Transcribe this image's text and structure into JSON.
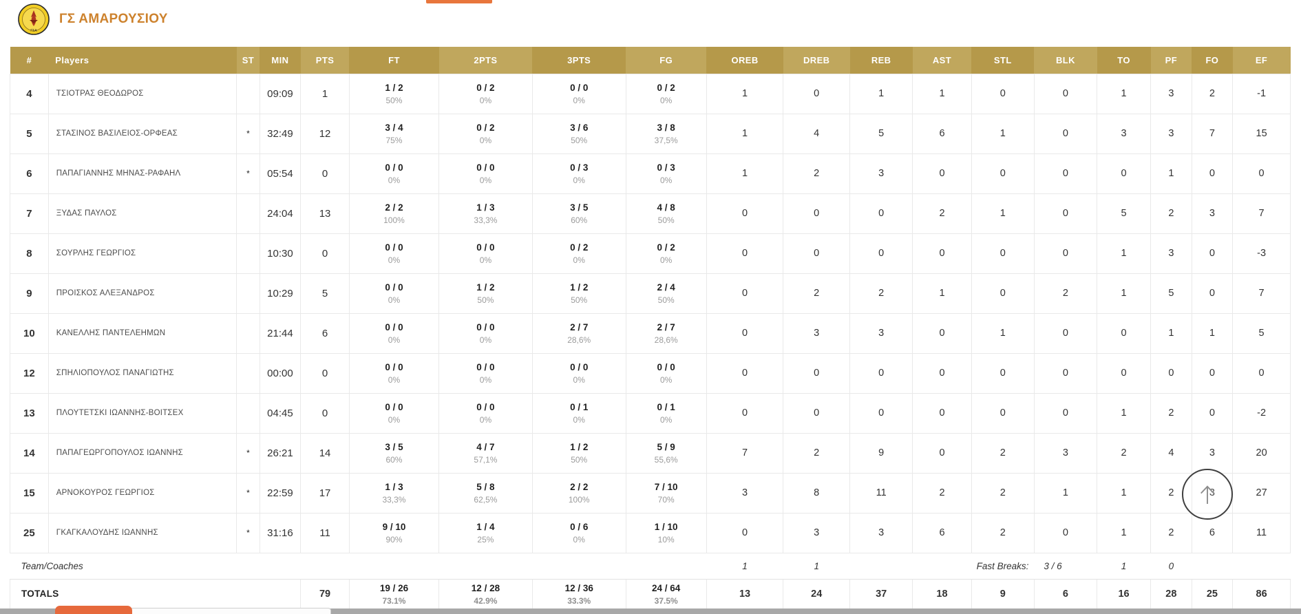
{
  "team": {
    "name": "ΓΣ ΑΜΑΡΟΥΣΙΟΥ"
  },
  "colors": {
    "header_gold_dark": "#b5994a",
    "header_gold_light": "#c0a75d",
    "team_name_orange": "#cd822d",
    "accent_orange_button": "#e6693c",
    "pct_gray": "#9b9b9b"
  },
  "icons": {
    "scroll_top_arrow": "up-arrow",
    "team_logo": "club-crest"
  },
  "table": {
    "columns": [
      "#",
      "Players",
      "ST",
      "MIN",
      "PTS",
      "FT",
      "2PTS",
      "3PTS",
      "FG",
      "OREB",
      "DREB",
      "REB",
      "AST",
      "STL",
      "BLK",
      "TO",
      "PF",
      "FO",
      "EF"
    ],
    "players": [
      {
        "num": "4",
        "name": "ΤΣΙΟΤΡΑΣ ΘΕΟΔΩΡΟΣ",
        "starter": "",
        "min": "09:09",
        "pts": "1",
        "ft": "1 / 2",
        "ft_pct": "50%",
        "p2": "0 / 2",
        "p2_pct": "0%",
        "p3": "0 / 0",
        "p3_pct": "0%",
        "fg": "0 / 2",
        "fg_pct": "0%",
        "oreb": "1",
        "dreb": "0",
        "reb": "1",
        "ast": "1",
        "stl": "0",
        "blk": "0",
        "to": "1",
        "pf": "3",
        "fo": "2",
        "ef": "-1"
      },
      {
        "num": "5",
        "name": "ΣΤΑΣΙΝΟΣ ΒΑΣΙΛΕΙΟΣ-ΟΡΦΕΑΣ",
        "starter": "*",
        "min": "32:49",
        "pts": "12",
        "ft": "3 / 4",
        "ft_pct": "75%",
        "p2": "0 / 2",
        "p2_pct": "0%",
        "p3": "3 / 6",
        "p3_pct": "50%",
        "fg": "3 / 8",
        "fg_pct": "37,5%",
        "oreb": "1",
        "dreb": "4",
        "reb": "5",
        "ast": "6",
        "stl": "1",
        "blk": "0",
        "to": "3",
        "pf": "3",
        "fo": "7",
        "ef": "15"
      },
      {
        "num": "6",
        "name": "ΠΑΠΑΓΙΑΝΝΗΣ ΜΗΝΑΣ-ΡΑΦΑΗΛ",
        "starter": "*",
        "min": "05:54",
        "pts": "0",
        "ft": "0 / 0",
        "ft_pct": "0%",
        "p2": "0 / 0",
        "p2_pct": "0%",
        "p3": "0 / 3",
        "p3_pct": "0%",
        "fg": "0 / 3",
        "fg_pct": "0%",
        "oreb": "1",
        "dreb": "2",
        "reb": "3",
        "ast": "0",
        "stl": "0",
        "blk": "0",
        "to": "0",
        "pf": "1",
        "fo": "0",
        "ef": "0"
      },
      {
        "num": "7",
        "name": "ΞΥΔΑΣ ΠΑΥΛΟΣ",
        "starter": "",
        "min": "24:04",
        "pts": "13",
        "ft": "2 / 2",
        "ft_pct": "100%",
        "p2": "1 / 3",
        "p2_pct": "33,3%",
        "p3": "3 / 5",
        "p3_pct": "60%",
        "fg": "4 / 8",
        "fg_pct": "50%",
        "oreb": "0",
        "dreb": "0",
        "reb": "0",
        "ast": "2",
        "stl": "1",
        "blk": "0",
        "to": "5",
        "pf": "2",
        "fo": "3",
        "ef": "7"
      },
      {
        "num": "8",
        "name": "ΣΟΥΡΛΗΣ ΓΕΩΡΓΙΟΣ",
        "starter": "",
        "min": "10:30",
        "pts": "0",
        "ft": "0 / 0",
        "ft_pct": "0%",
        "p2": "0 / 0",
        "p2_pct": "0%",
        "p3": "0 / 2",
        "p3_pct": "0%",
        "fg": "0 / 2",
        "fg_pct": "0%",
        "oreb": "0",
        "dreb": "0",
        "reb": "0",
        "ast": "0",
        "stl": "0",
        "blk": "0",
        "to": "1",
        "pf": "3",
        "fo": "0",
        "ef": "-3"
      },
      {
        "num": "9",
        "name": "ΠΡΟΙΣΚΟΣ ΑΛΕΞΑΝΔΡΟΣ",
        "starter": "",
        "min": "10:29",
        "pts": "5",
        "ft": "0 / 0",
        "ft_pct": "0%",
        "p2": "1 / 2",
        "p2_pct": "50%",
        "p3": "1 / 2",
        "p3_pct": "50%",
        "fg": "2 / 4",
        "fg_pct": "50%",
        "oreb": "0",
        "dreb": "2",
        "reb": "2",
        "ast": "1",
        "stl": "0",
        "blk": "2",
        "to": "1",
        "pf": "5",
        "fo": "0",
        "ef": "7"
      },
      {
        "num": "10",
        "name": "ΚΑΝΕΛΛΗΣ ΠΑΝΤΕΛΕΗΜΩΝ",
        "starter": "",
        "min": "21:44",
        "pts": "6",
        "ft": "0 / 0",
        "ft_pct": "0%",
        "p2": "0 / 0",
        "p2_pct": "0%",
        "p3": "2 / 7",
        "p3_pct": "28,6%",
        "fg": "2 / 7",
        "fg_pct": "28,6%",
        "oreb": "0",
        "dreb": "3",
        "reb": "3",
        "ast": "0",
        "stl": "1",
        "blk": "0",
        "to": "0",
        "pf": "1",
        "fo": "1",
        "ef": "5"
      },
      {
        "num": "12",
        "name": "ΣΠΗΛΙΟΠΟΥΛΟΣ ΠΑΝΑΓΙΩΤΗΣ",
        "starter": "",
        "min": "00:00",
        "pts": "0",
        "ft": "0 / 0",
        "ft_pct": "0%",
        "p2": "0 / 0",
        "p2_pct": "0%",
        "p3": "0 / 0",
        "p3_pct": "0%",
        "fg": "0 / 0",
        "fg_pct": "0%",
        "oreb": "0",
        "dreb": "0",
        "reb": "0",
        "ast": "0",
        "stl": "0",
        "blk": "0",
        "to": "0",
        "pf": "0",
        "fo": "0",
        "ef": "0"
      },
      {
        "num": "13",
        "name": "ΠΛΟΥΤΕΤΣΚΙ ΙΩΑΝΝΗΣ-ΒΟΙΤΣΕΧ",
        "starter": "",
        "min": "04:45",
        "pts": "0",
        "ft": "0 / 0",
        "ft_pct": "0%",
        "p2": "0 / 0",
        "p2_pct": "0%",
        "p3": "0 / 1",
        "p3_pct": "0%",
        "fg": "0 / 1",
        "fg_pct": "0%",
        "oreb": "0",
        "dreb": "0",
        "reb": "0",
        "ast": "0",
        "stl": "0",
        "blk": "0",
        "to": "1",
        "pf": "2",
        "fo": "0",
        "ef": "-2"
      },
      {
        "num": "14",
        "name": "ΠΑΠΑΓΕΩΡΓΟΠΟΥΛΟΣ ΙΩΑΝΝΗΣ",
        "starter": "*",
        "min": "26:21",
        "pts": "14",
        "ft": "3 / 5",
        "ft_pct": "60%",
        "p2": "4 / 7",
        "p2_pct": "57,1%",
        "p3": "1 / 2",
        "p3_pct": "50%",
        "fg": "5 / 9",
        "fg_pct": "55,6%",
        "oreb": "7",
        "dreb": "2",
        "reb": "9",
        "ast": "0",
        "stl": "2",
        "blk": "3",
        "to": "2",
        "pf": "4",
        "fo": "3",
        "ef": "20"
      },
      {
        "num": "15",
        "name": "ΑΡΝΟΚΟΥΡΟΣ ΓΕΩΡΓΙΟΣ",
        "starter": "*",
        "min": "22:59",
        "pts": "17",
        "ft": "1 / 3",
        "ft_pct": "33,3%",
        "p2": "5 / 8",
        "p2_pct": "62,5%",
        "p3": "2 / 2",
        "p3_pct": "100%",
        "fg": "7 / 10",
        "fg_pct": "70%",
        "oreb": "3",
        "dreb": "8",
        "reb": "11",
        "ast": "2",
        "stl": "2",
        "blk": "1",
        "to": "1",
        "pf": "2",
        "fo": "3",
        "ef": "27"
      },
      {
        "num": "25",
        "name": "ΓΚΑΓΚΑΛΟΥΔΗΣ ΙΩΑΝΝΗΣ",
        "starter": "*",
        "min": "31:16",
        "pts": "11",
        "ft": "9 / 10",
        "ft_pct": "90%",
        "p2": "1 / 4",
        "p2_pct": "25%",
        "p3": "0 / 6",
        "p3_pct": "0%",
        "fg": "1 / 10",
        "fg_pct": "10%",
        "oreb": "0",
        "dreb": "3",
        "reb": "3",
        "ast": "6",
        "stl": "2",
        "blk": "0",
        "to": "1",
        "pf": "2",
        "fo": "6",
        "ef": "11"
      }
    ],
    "team_row": {
      "label": "Team/Coaches",
      "oreb": "1",
      "dreb": "1",
      "fast_breaks_label": "Fast Breaks:",
      "fast_breaks": "3 / 6",
      "to": "1",
      "pf": "0"
    },
    "totals": {
      "label": "TOTALS",
      "pts": "79",
      "ft": "19 / 26",
      "ft_pct": "73.1%",
      "p2": "12 / 28",
      "p2_pct": "42.9%",
      "p3": "12 / 36",
      "p3_pct": "33.3%",
      "fg": "24 / 64",
      "fg_pct": "37.5%",
      "oreb": "13",
      "dreb": "24",
      "reb": "37",
      "ast": "18",
      "stl": "9",
      "blk": "6",
      "to": "16",
      "pf": "28",
      "fo": "25",
      "ef": "86"
    }
  }
}
